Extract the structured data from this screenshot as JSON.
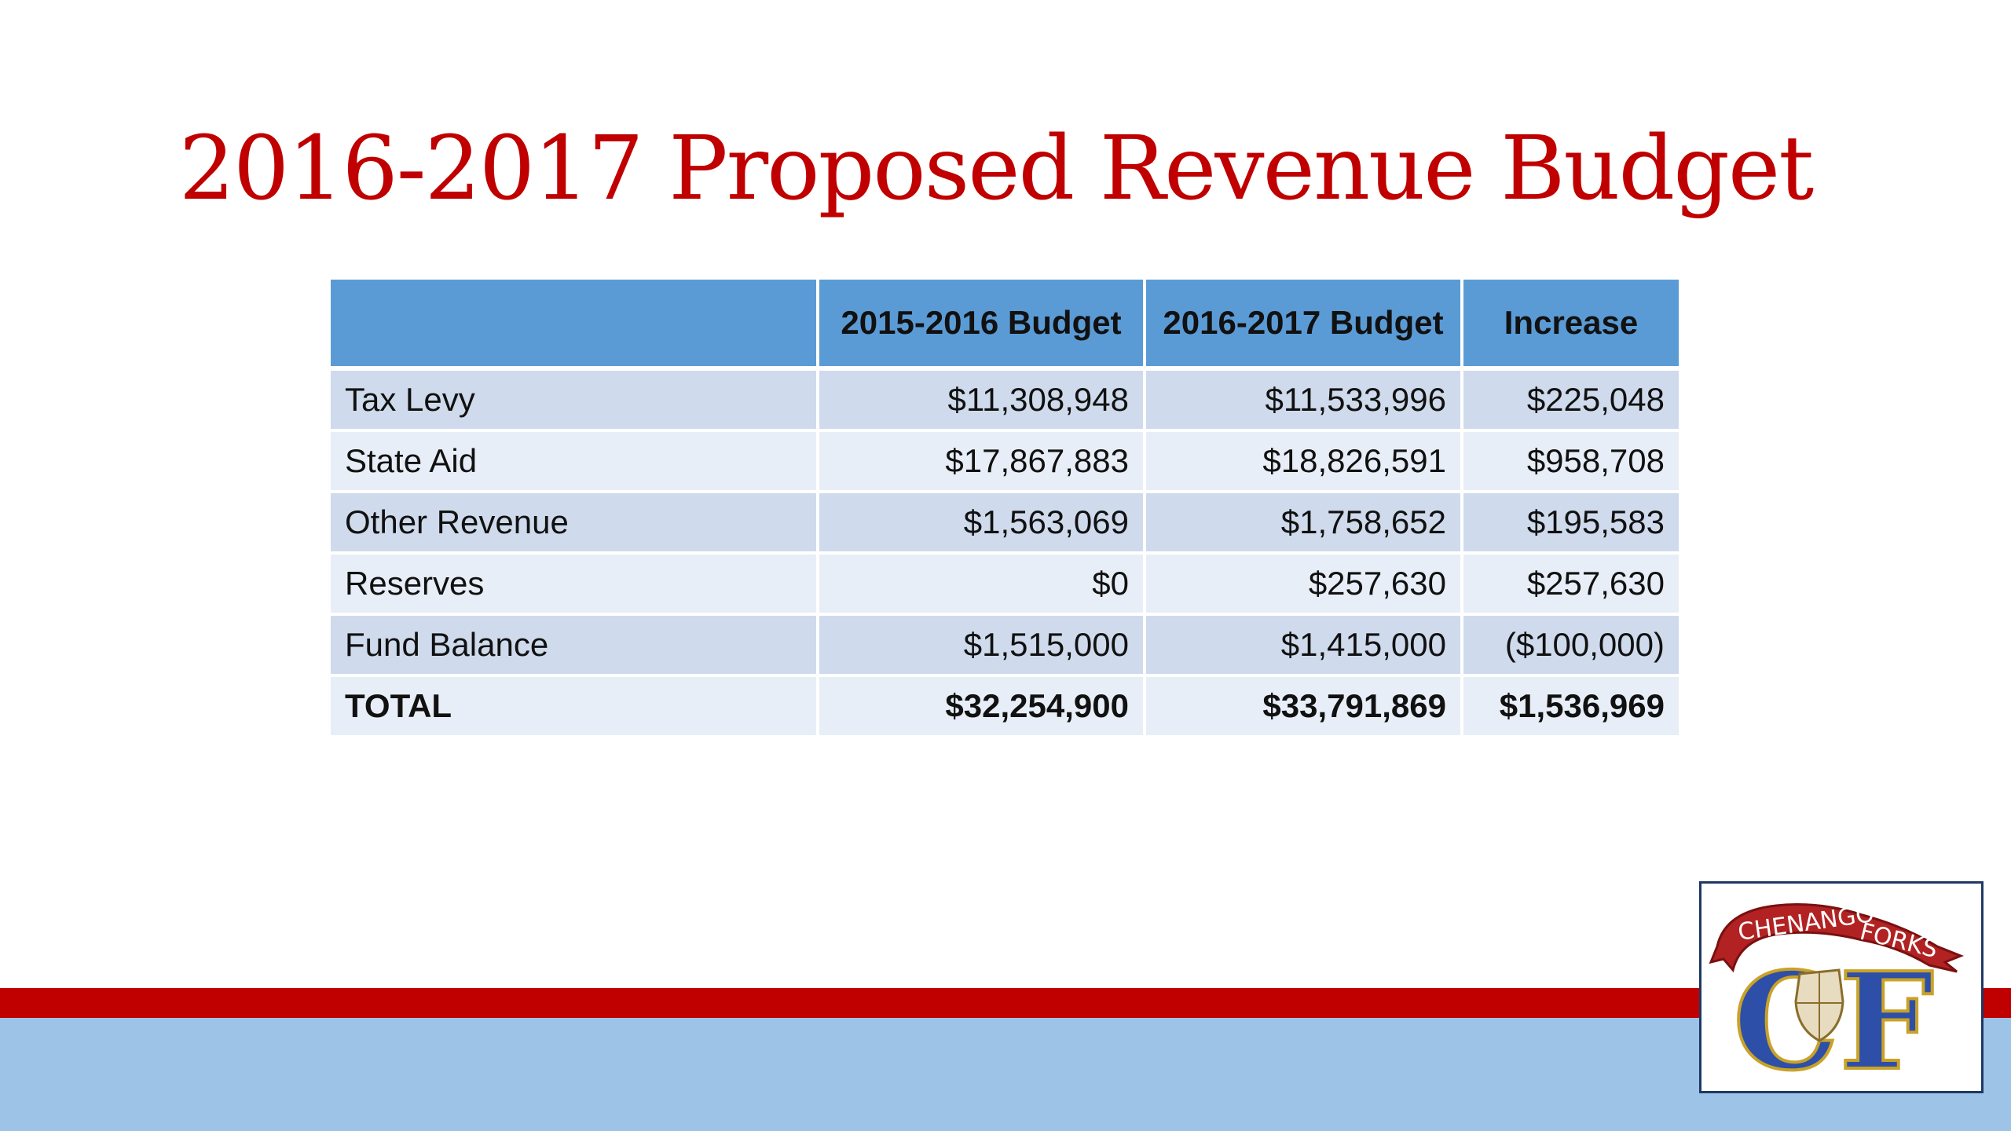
{
  "title": "2016-2017 Proposed Revenue Budget",
  "table": {
    "headers": [
      "",
      "2015-2016 Budget",
      "2016-2017 Budget",
      "Increase"
    ],
    "rows": [
      {
        "label": "Tax Levy",
        "b2015": "$11,308,948",
        "b2016": "$11,533,996",
        "increase": "$225,048"
      },
      {
        "label": "State Aid",
        "b2015": "$17,867,883",
        "b2016": "$18,826,591",
        "increase": "$958,708"
      },
      {
        "label": "Other Revenue",
        "b2015": "$1,563,069",
        "b2016": "$1,758,652",
        "increase": "$195,583"
      },
      {
        "label": "Reserves",
        "b2015": "$0",
        "b2016": "$257,630",
        "increase": "$257,630"
      },
      {
        "label": "Fund Balance",
        "b2015": "$1,515,000",
        "b2016": "$1,415,000",
        "increase": "($100,000)"
      }
    ],
    "total": {
      "label": "TOTAL",
      "b2015": "$32,254,900",
      "b2016": "$33,791,869",
      "increase": "$1,536,969"
    }
  },
  "logo": {
    "banner_left": "CHENANGO",
    "banner_right": "FORKS",
    "monogram": "CF"
  },
  "colors": {
    "title": "#c00000",
    "header_fill": "#5b9bd5",
    "row_odd": "#cfdbec",
    "row_even": "#e8eef7",
    "red_band": "#c00000",
    "blue_band": "#9dc3e6"
  }
}
